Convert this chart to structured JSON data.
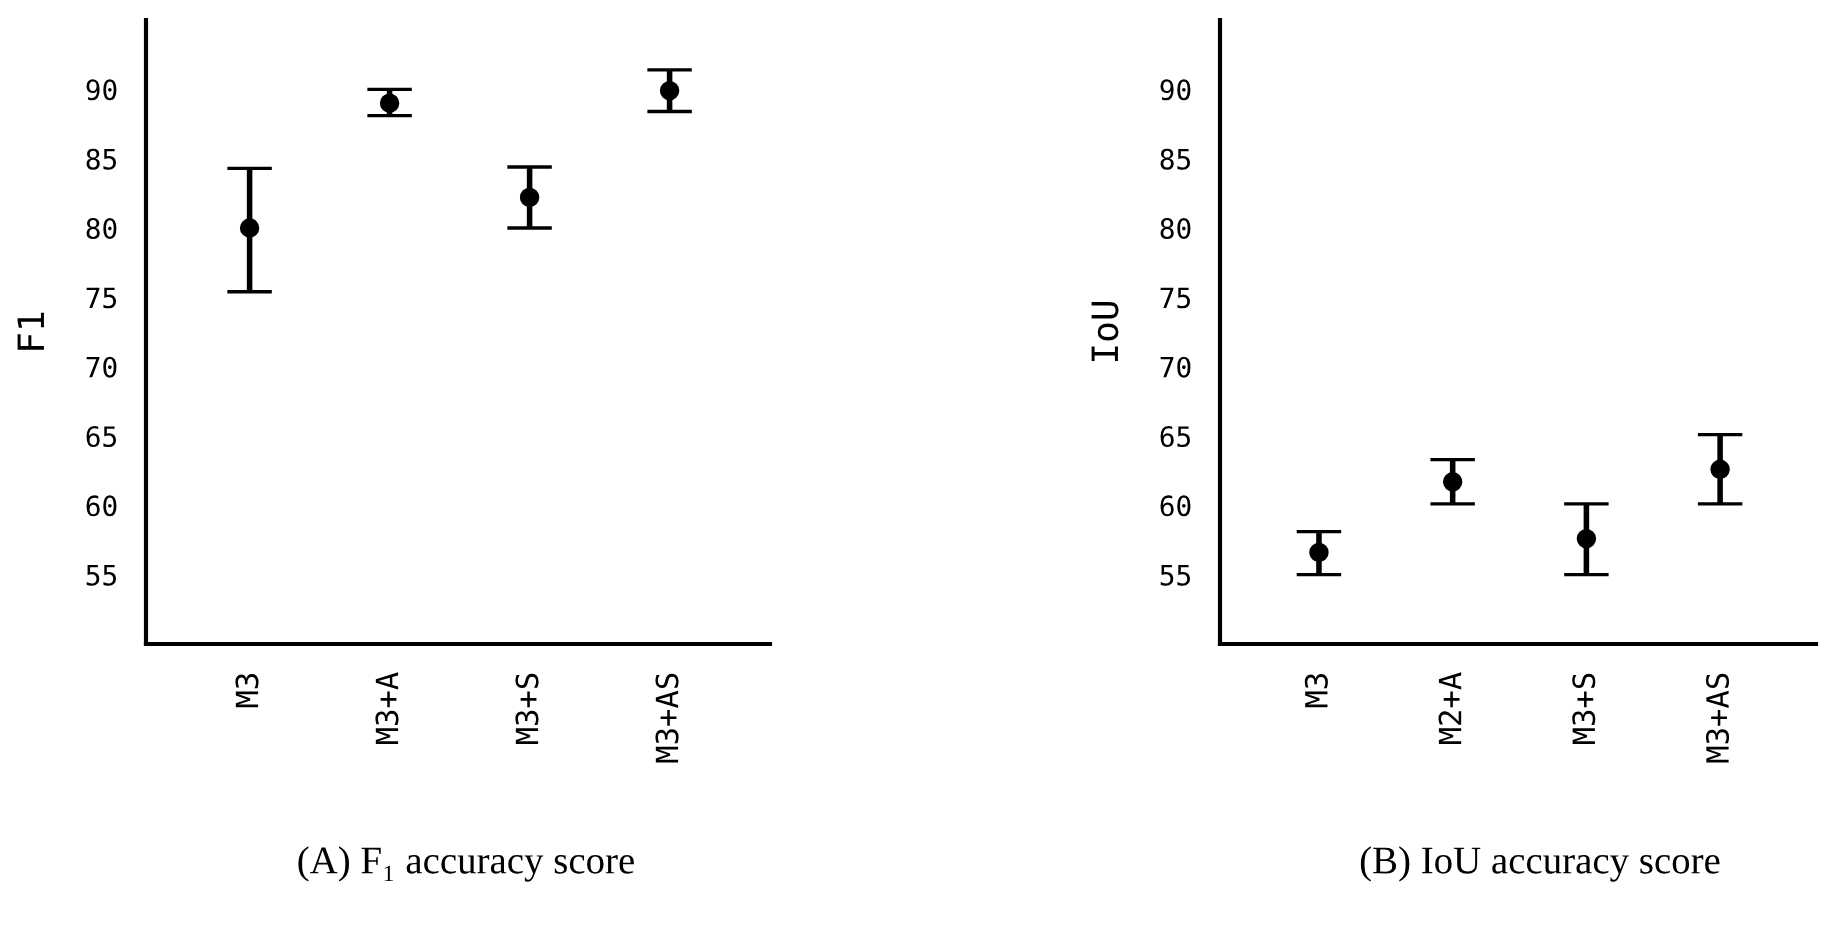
{
  "chart_data": [
    {
      "type": "scatter",
      "title": "(A) F₁ accuracy score",
      "ylabel": "F1",
      "categories": [
        "M3",
        "M3+A",
        "M3+S",
        "M3+AS"
      ],
      "values": [
        80.0,
        89.0,
        82.2,
        89.9
      ],
      "errors": [
        [
          75.4,
          84.3
        ],
        [
          88.1,
          90.0
        ],
        [
          80.0,
          84.4
        ],
        [
          88.4,
          91.4
        ]
      ],
      "color": "#000000",
      "marker": "circle",
      "ylim": [
        50,
        95
      ],
      "yticks": [
        55,
        60,
        65,
        70,
        75,
        80,
        85,
        90
      ],
      "grid": false,
      "legend": false
    },
    {
      "type": "scatter",
      "title": "(B) IoU accuracy score",
      "ylabel": "IoU",
      "categories": [
        "M3",
        "M2+A",
        "M3+S",
        "M3+AS"
      ],
      "values": [
        56.6,
        61.7,
        57.6,
        62.6
      ],
      "errors": [
        [
          55.0,
          58.1
        ],
        [
          60.1,
          63.3
        ],
        [
          55.0,
          60.1
        ],
        [
          60.1,
          65.1
        ]
      ],
      "color": "#000000",
      "marker": "circle",
      "ylim": [
        50,
        95
      ],
      "yticks": [
        55,
        60,
        65,
        70,
        75,
        80,
        85,
        90
      ],
      "grid": false,
      "legend": false
    }
  ]
}
